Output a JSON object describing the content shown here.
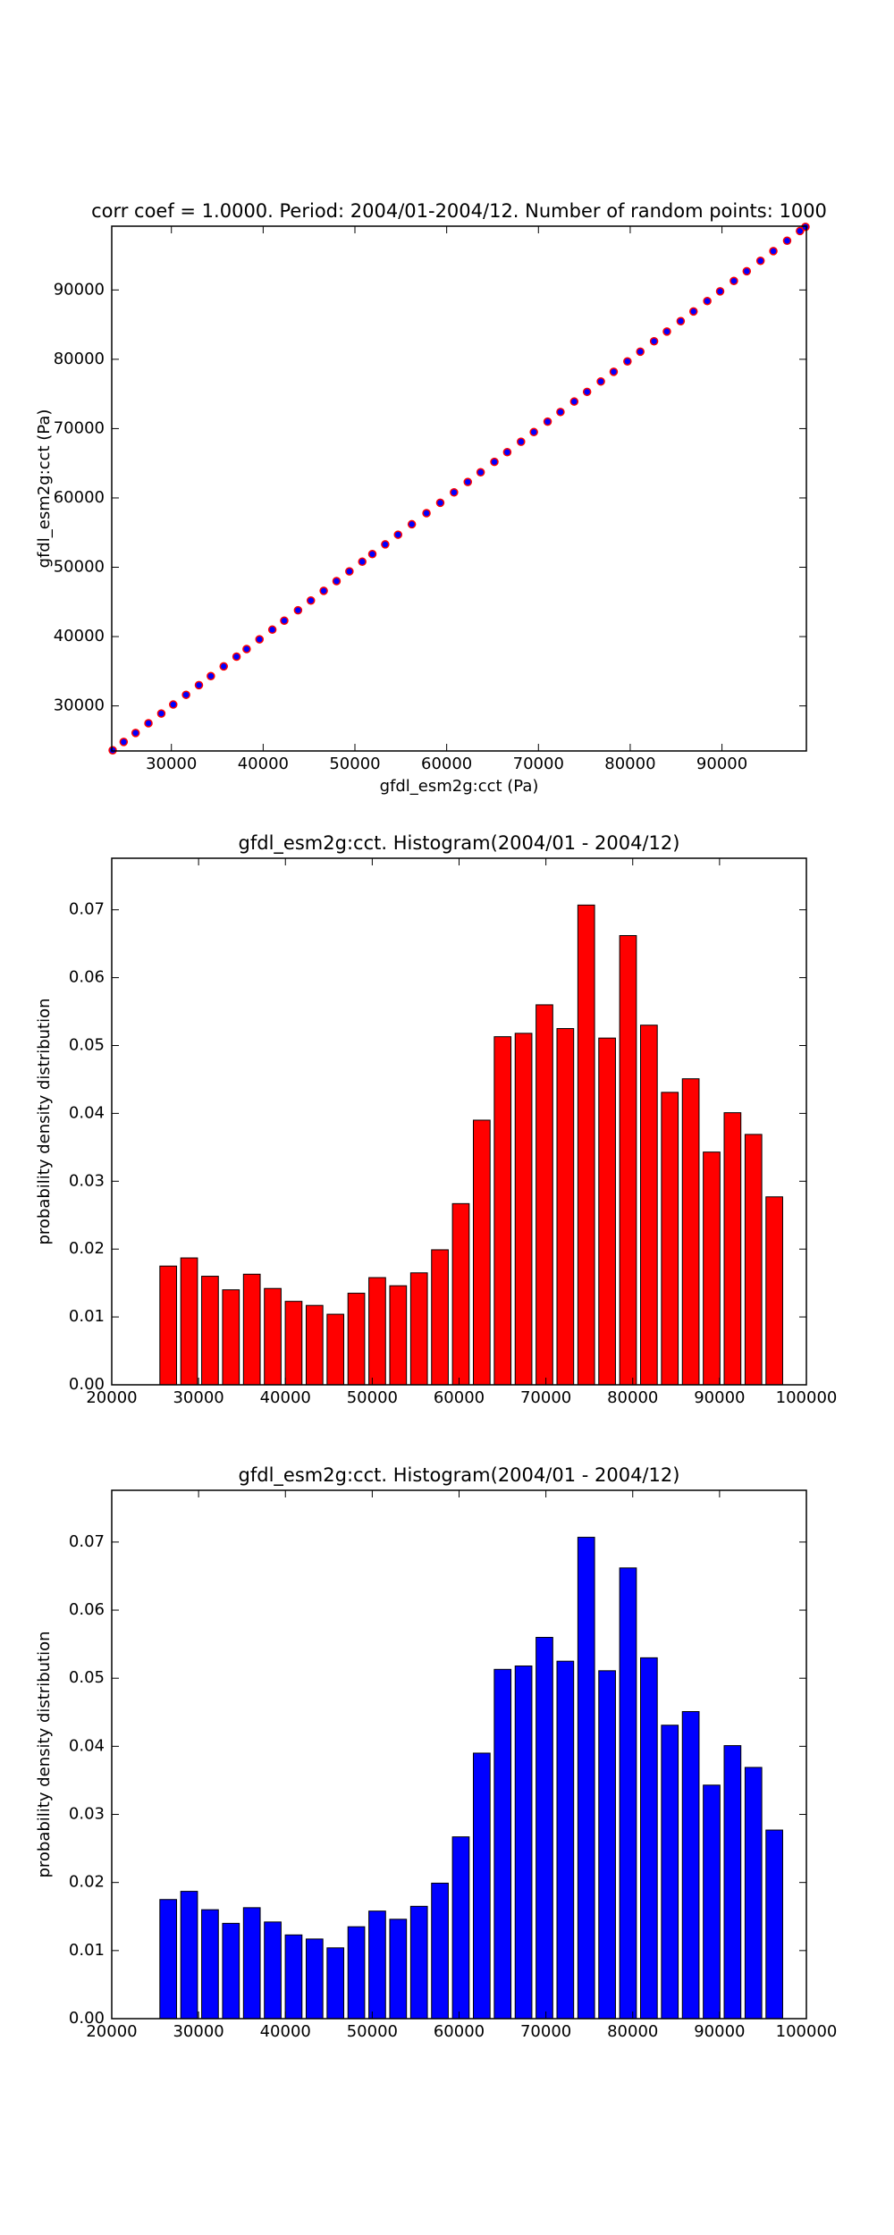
{
  "chart_data": [
    {
      "type": "scatter",
      "title": "corr coef = 1.0000.  Period: 2004/01-2004/12.  Number of random points: 1000",
      "xlabel": "gfdl_esm2g:cct (Pa)",
      "ylabel": "gfdl_esm2g:cct (Pa)",
      "color": "#0000ff",
      "edgecolor": "#ff0000",
      "x": [
        23600,
        24800,
        26100,
        27500,
        28900,
        30200,
        31600,
        33000,
        34300,
        35700,
        37100,
        38200,
        39600,
        41000,
        42300,
        43800,
        45200,
        46600,
        48000,
        49400,
        50800,
        51900,
        53300,
        54700,
        56200,
        57800,
        59300,
        60800,
        62300,
        63700,
        65200,
        66600,
        68100,
        69500,
        71000,
        72400,
        73900,
        75300,
        76800,
        78200,
        79700,
        81100,
        82600,
        84000,
        85500,
        86900,
        88400,
        89800,
        91300,
        92700,
        94200,
        95600,
        97100,
        98500,
        99100
      ],
      "y": [
        23600,
        24800,
        26100,
        27500,
        28900,
        30200,
        31600,
        33000,
        34300,
        35700,
        37100,
        38200,
        39600,
        41000,
        42300,
        43800,
        45200,
        46600,
        48000,
        49400,
        50800,
        51900,
        53300,
        54700,
        56200,
        57800,
        59300,
        60800,
        62300,
        63700,
        65200,
        66600,
        68100,
        69500,
        71000,
        72400,
        73900,
        75300,
        76800,
        78200,
        79700,
        81100,
        82600,
        84000,
        85500,
        86900,
        88400,
        89800,
        91300,
        92700,
        94200,
        95600,
        97100,
        98500,
        99100
      ],
      "xlim": [
        23500,
        99200
      ],
      "ylim": [
        23500,
        99200
      ],
      "xticks": [
        30000,
        40000,
        50000,
        60000,
        70000,
        80000,
        90000
      ],
      "yticks": [
        30000,
        40000,
        50000,
        60000,
        70000,
        80000,
        90000
      ]
    },
    {
      "type": "histogram",
      "title": "gfdl_esm2g:cct. Histogram(2004/01 - 2004/12)",
      "ylabel": "probability density distribution",
      "color": "#ff0000",
      "bins": [
        25300,
        27707,
        30114,
        32521,
        34928,
        37335,
        39742,
        42149,
        44556,
        46963,
        49370,
        51777,
        54184,
        56591,
        58998,
        61405,
        63812,
        66219,
        68626,
        71033,
        73440,
        75847,
        78254,
        80661,
        83068,
        85475,
        87882,
        90289,
        92696,
        95103,
        97510
      ],
      "values": [
        0.0175,
        0.0187,
        0.016,
        0.014,
        0.0163,
        0.0142,
        0.0123,
        0.0117,
        0.0104,
        0.0135,
        0.0158,
        0.0146,
        0.0165,
        0.0199,
        0.0267,
        0.039,
        0.0513,
        0.0518,
        0.056,
        0.0525,
        0.0707,
        0.0511,
        0.0662,
        0.053,
        0.0431,
        0.0451,
        0.0343,
        0.0401,
        0.0369,
        0.0277
      ],
      "xlim": [
        20000,
        100000
      ],
      "ylim": [
        0,
        0.0776
      ],
      "xticks": [
        20000,
        30000,
        40000,
        50000,
        60000,
        70000,
        80000,
        90000,
        100000
      ],
      "yticks": [
        {
          "value": 0,
          "label": "0.00"
        },
        0.01,
        0.02,
        0.03,
        0.04,
        0.05,
        0.06,
        0.07
      ]
    },
    {
      "type": "histogram",
      "title": "gfdl_esm2g:cct. Histogram(2004/01 - 2004/12)",
      "ylabel": "probability density distribution",
      "color": "#0000ff",
      "bins": [
        25300,
        27707,
        30114,
        32521,
        34928,
        37335,
        39742,
        42149,
        44556,
        46963,
        49370,
        51777,
        54184,
        56591,
        58998,
        61405,
        63812,
        66219,
        68626,
        71033,
        73440,
        75847,
        78254,
        80661,
        83068,
        85475,
        87882,
        90289,
        92696,
        95103,
        97510
      ],
      "values": [
        0.0175,
        0.0187,
        0.016,
        0.014,
        0.0163,
        0.0142,
        0.0123,
        0.0117,
        0.0104,
        0.0135,
        0.0158,
        0.0146,
        0.0165,
        0.0199,
        0.0267,
        0.039,
        0.0513,
        0.0518,
        0.056,
        0.0525,
        0.0707,
        0.0511,
        0.0662,
        0.053,
        0.0431,
        0.0451,
        0.0343,
        0.0401,
        0.0369,
        0.0277
      ],
      "xlim": [
        20000,
        100000
      ],
      "ylim": [
        0,
        0.0776
      ],
      "xticks": [
        20000,
        30000,
        40000,
        50000,
        60000,
        70000,
        80000,
        90000,
        100000
      ],
      "yticks": [
        {
          "value": 0,
          "label": "0.00"
        },
        0.01,
        0.02,
        0.03,
        0.04,
        0.05,
        0.06,
        0.07
      ]
    }
  ]
}
